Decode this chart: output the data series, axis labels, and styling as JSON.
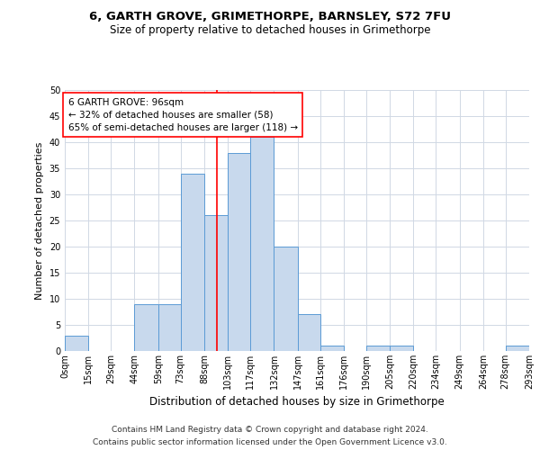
{
  "title1": "6, GARTH GROVE, GRIMETHORPE, BARNSLEY, S72 7FU",
  "title2": "Size of property relative to detached houses in Grimethorpe",
  "xlabel": "Distribution of detached houses by size in Grimethorpe",
  "ylabel": "Number of detached properties",
  "footer1": "Contains HM Land Registry data © Crown copyright and database right 2024.",
  "footer2": "Contains public sector information licensed under the Open Government Licence v3.0.",
  "annotation_title": "6 GARTH GROVE: 96sqm",
  "annotation_line1": "← 32% of detached houses are smaller (58)",
  "annotation_line2": "65% of semi-detached houses are larger (118) →",
  "property_size": 96,
  "bin_edges": [
    0,
    15,
    29,
    44,
    59,
    73,
    88,
    103,
    117,
    132,
    147,
    161,
    176,
    190,
    205,
    220,
    234,
    249,
    264,
    278,
    293
  ],
  "bin_labels": [
    "0sqm",
    "15sqm",
    "29sqm",
    "44sqm",
    "59sqm",
    "73sqm",
    "88sqm",
    "103sqm",
    "117sqm",
    "132sqm",
    "147sqm",
    "161sqm",
    "176sqm",
    "190sqm",
    "205sqm",
    "220sqm",
    "234sqm",
    "249sqm",
    "264sqm",
    "278sqm",
    "293sqm"
  ],
  "counts": [
    3,
    0,
    0,
    9,
    9,
    34,
    26,
    38,
    41,
    20,
    7,
    1,
    0,
    1,
    1,
    0,
    0,
    0,
    0,
    1
  ],
  "bar_color": "#c8d9ed",
  "bar_edge_color": "#5b9bd5",
  "vline_color": "red",
  "vline_x": 96,
  "grid_color": "#d0d8e4",
  "ylim": [
    0,
    50
  ],
  "yticks": [
    0,
    5,
    10,
    15,
    20,
    25,
    30,
    35,
    40,
    45,
    50
  ],
  "title1_fontsize": 9.5,
  "title2_fontsize": 8.5,
  "ylabel_fontsize": 8,
  "xlabel_fontsize": 8.5,
  "tick_fontsize": 7,
  "footer_fontsize": 6.5,
  "annotation_fontsize": 7.5
}
